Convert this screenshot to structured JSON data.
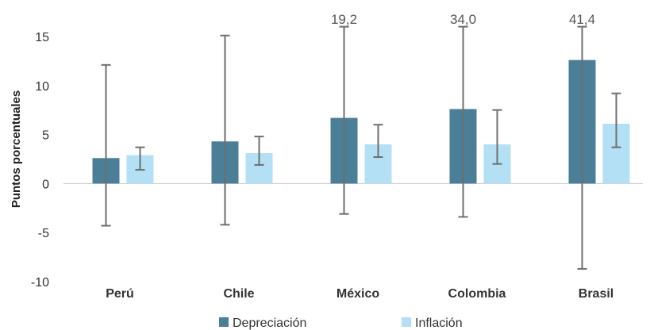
{
  "chart_data": {
    "type": "bar",
    "title": "",
    "xlabel": "",
    "ylabel": "Puntos porcentuales",
    "ylim": [
      -10,
      15
    ],
    "yticks": [
      15,
      10,
      5,
      0,
      -5,
      -10
    ],
    "grid": false,
    "legend_position": "bottom",
    "categories": [
      "Perú",
      "Chile",
      "México",
      "Colombia",
      "Brasil"
    ],
    "series": [
      {
        "name": "Depreciación",
        "color": "#4a7f97",
        "values": [
          2.6,
          4.3,
          6.7,
          7.6,
          12.6
        ],
        "error_high": [
          12.1,
          15.1,
          19.2,
          34.0,
          41.4
        ],
        "error_low": [
          -4.3,
          -4.2,
          -3.1,
          -3.4,
          -8.7
        ]
      },
      {
        "name": "Inflación",
        "color": "#b3e0f4",
        "values": [
          2.9,
          3.1,
          4.0,
          4.0,
          6.1
        ],
        "error_high": [
          3.7,
          4.8,
          6.0,
          7.5,
          9.2
        ],
        "error_low": [
          1.4,
          1.9,
          2.7,
          2.0,
          3.7
        ]
      }
    ],
    "annotations": [
      {
        "category": "México",
        "text": "19,2"
      },
      {
        "category": "Colombia",
        "text": "34,0"
      },
      {
        "category": "Brasil",
        "text": "41,4"
      }
    ]
  }
}
